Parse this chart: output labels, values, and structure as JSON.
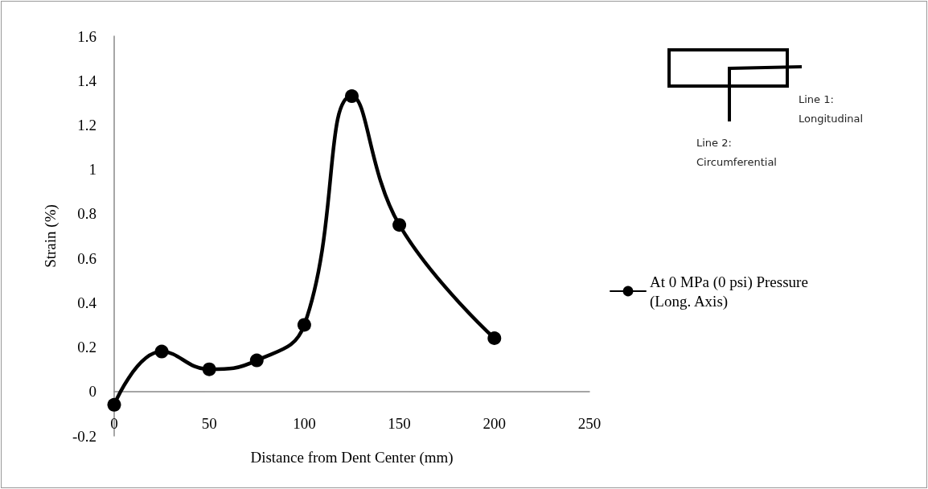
{
  "chart_data": {
    "type": "line",
    "xlabel": "Distance from Dent Center (mm)",
    "ylabel": "Strain (%)",
    "x": [
      0,
      25,
      50,
      75,
      100,
      125,
      150,
      200
    ],
    "series": [
      {
        "name": "At 0 MPa (0 psi) Pressure (Long. Axis)",
        "color": "#000000",
        "values": [
          -0.06,
          0.18,
          0.1,
          0.14,
          0.3,
          1.33,
          0.75,
          0.24
        ]
      }
    ],
    "xlim": [
      0,
      250
    ],
    "xticks": [
      0,
      50,
      100,
      150,
      200,
      250
    ],
    "ylim": [
      -0.2,
      1.6
    ],
    "yticks": [
      -0.2,
      0,
      0.2,
      0.4,
      0.6,
      0.8,
      1,
      1.2,
      1.4,
      1.6
    ],
    "grid": false,
    "legend": "right",
    "marker": "circle",
    "line_style": "solid",
    "annotations": [
      "Line 1: Longitudinal",
      "Line 2: Circumferential"
    ]
  }
}
